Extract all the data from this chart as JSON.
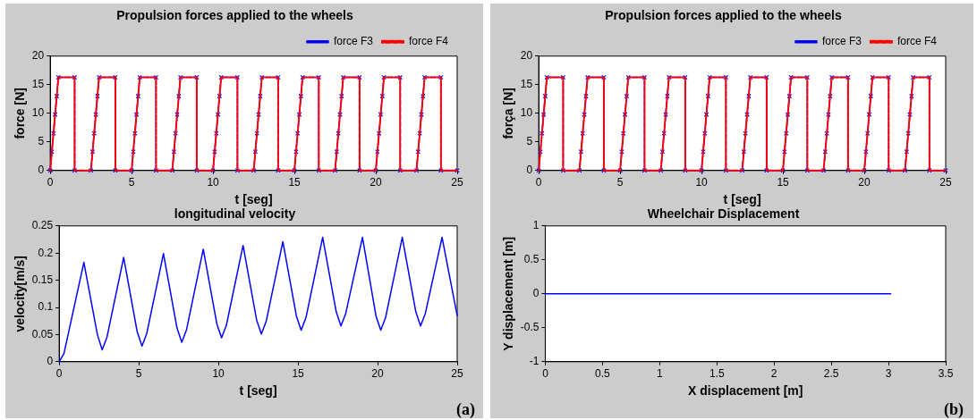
{
  "chart_data": [
    {
      "type": "line",
      "title": "Propulsion forces applied to the wheels",
      "xlabel": "t [seg]",
      "ylabel": "force [N]",
      "x": [
        0,
        0.1,
        0.2,
        0.3,
        0.4,
        0.5,
        1.5,
        1.5,
        2.5,
        2.6,
        2.7,
        2.8,
        2.9,
        3,
        4,
        4,
        5,
        5.1,
        5.2,
        5.3,
        5.4,
        5.5,
        6.5,
        6.5,
        7.5,
        7.6,
        7.7,
        7.8,
        7.9,
        8,
        9,
        9,
        10,
        10.1,
        10.2,
        10.3,
        10.4,
        10.5,
        11.5,
        11.5,
        12.5,
        12.6,
        12.7,
        12.8,
        12.9,
        13,
        14,
        14,
        15,
        15.1,
        15.2,
        15.3,
        15.4,
        15.5,
        16.5,
        16.5,
        17.5,
        17.6,
        17.7,
        17.8,
        17.9,
        18,
        19,
        19,
        20,
        20.1,
        20.2,
        20.3,
        20.4,
        20.5,
        21.5,
        21.5,
        22.5,
        22.6,
        22.7,
        22.8,
        22.9,
        23,
        24,
        24,
        25
      ],
      "series": [
        {
          "name": "force F3",
          "color": "#0000ff",
          "marker": "cross",
          "values": [
            0,
            3.3,
            6.5,
            9.8,
            13,
            16.3,
            16.3,
            0,
            0,
            3.3,
            6.5,
            9.8,
            13,
            16.3,
            16.3,
            0,
            0,
            3.3,
            6.5,
            9.8,
            13,
            16.3,
            16.3,
            0,
            0,
            3.3,
            6.5,
            9.8,
            13,
            16.3,
            16.3,
            0,
            0,
            3.3,
            6.5,
            9.8,
            13,
            16.3,
            16.3,
            0,
            0,
            3.3,
            6.5,
            9.8,
            13,
            16.3,
            16.3,
            0,
            0,
            3.3,
            6.5,
            9.8,
            13,
            16.3,
            16.3,
            0,
            0,
            3.3,
            6.5,
            9.8,
            13,
            16.3,
            16.3,
            0,
            0,
            3.3,
            6.5,
            9.8,
            13,
            16.3,
            16.3,
            0,
            0,
            3.3,
            6.5,
            9.8,
            13,
            16.3,
            16.3,
            0,
            0
          ]
        },
        {
          "name": "force F4",
          "color": "#ff0000",
          "line_style": "dashed",
          "values": [
            0,
            3.3,
            6.5,
            9.8,
            13,
            16.3,
            16.3,
            0,
            0,
            3.3,
            6.5,
            9.8,
            13,
            16.3,
            16.3,
            0,
            0,
            3.3,
            6.5,
            9.8,
            13,
            16.3,
            16.3,
            0,
            0,
            3.3,
            6.5,
            9.8,
            13,
            16.3,
            16.3,
            0,
            0,
            3.3,
            6.5,
            9.8,
            13,
            16.3,
            16.3,
            0,
            0,
            3.3,
            6.5,
            9.8,
            13,
            16.3,
            16.3,
            0,
            0,
            3.3,
            6.5,
            9.8,
            13,
            16.3,
            16.3,
            0,
            0,
            3.3,
            6.5,
            9.8,
            13,
            16.3,
            16.3,
            0,
            0,
            3.3,
            6.5,
            9.8,
            13,
            16.3,
            16.3,
            0,
            0,
            3.3,
            6.5,
            9.8,
            13,
            16.3,
            16.3,
            0,
            0
          ]
        }
      ],
      "xlim": [
        0,
        25
      ],
      "xticks": [
        0,
        5,
        10,
        15,
        20,
        25
      ],
      "ylim": [
        0,
        20
      ],
      "yticks": [
        0,
        5,
        10,
        15,
        20
      ],
      "grid": false,
      "legend": "top right"
    },
    {
      "type": "line",
      "title": "longitudinal velocity",
      "xlabel": "t [seg]",
      "ylabel": "velocity[m/s]",
      "x": [
        0,
        0.3,
        1.55,
        2.4,
        2.7,
        3.0,
        4.05,
        4.9,
        5.2,
        5.5,
        6.55,
        7.4,
        7.7,
        8.0,
        9.05,
        9.9,
        10.2,
        10.5,
        11.55,
        12.4,
        12.7,
        13.0,
        14.05,
        14.9,
        15.2,
        15.5,
        16.55,
        17.4,
        17.7,
        18.0,
        19.05,
        19.9,
        20.2,
        20.5,
        21.55,
        22.4,
        22.7,
        23.0,
        24.05,
        25
      ],
      "series": [
        {
          "color": "#0000ff",
          "values": [
            0,
            0.015,
            0.183,
            0.05,
            0.022,
            0.045,
            0.192,
            0.055,
            0.029,
            0.052,
            0.199,
            0.062,
            0.036,
            0.059,
            0.207,
            0.07,
            0.044,
            0.067,
            0.214,
            0.077,
            0.051,
            0.074,
            0.221,
            0.084,
            0.058,
            0.081,
            0.229,
            0.092,
            0.066,
            0.089,
            0.229,
            0.084,
            0.058,
            0.081,
            0.229,
            0.092,
            0.066,
            0.089,
            0.229,
            0.085
          ]
        }
      ],
      "xlim": [
        0,
        25
      ],
      "xticks": [
        0,
        5,
        10,
        15,
        20,
        25
      ],
      "ylim": [
        0,
        0.25
      ],
      "yticks": [
        0,
        0.05,
        0.1,
        0.15,
        0.2,
        0.25
      ],
      "grid": false,
      "annotations": [
        "(a)"
      ]
    },
    {
      "type": "line",
      "title": "Propulsion forces applied to the wheels",
      "xlabel": "t [seg]",
      "ylabel": "força [N]",
      "x": [
        0,
        0.1,
        0.2,
        0.3,
        0.4,
        0.5,
        1.5,
        1.5,
        2.5,
        2.6,
        2.7,
        2.8,
        2.9,
        3,
        4,
        4,
        5,
        5.1,
        5.2,
        5.3,
        5.4,
        5.5,
        6.5,
        6.5,
        7.5,
        7.6,
        7.7,
        7.8,
        7.9,
        8,
        9,
        9,
        10,
        10.1,
        10.2,
        10.3,
        10.4,
        10.5,
        11.5,
        11.5,
        12.5,
        12.6,
        12.7,
        12.8,
        12.9,
        13,
        14,
        14,
        15,
        15.1,
        15.2,
        15.3,
        15.4,
        15.5,
        16.5,
        16.5,
        17.5,
        17.6,
        17.7,
        17.8,
        17.9,
        18,
        19,
        19,
        20,
        20.1,
        20.2,
        20.3,
        20.4,
        20.5,
        21.5,
        21.5,
        22.5,
        22.6,
        22.7,
        22.8,
        22.9,
        23,
        24,
        24,
        25
      ],
      "series": [
        {
          "name": "force F3",
          "color": "#0000ff",
          "marker": "cross",
          "values": [
            0,
            3.3,
            6.5,
            9.8,
            13,
            16.3,
            16.3,
            0,
            0,
            3.3,
            6.5,
            9.8,
            13,
            16.3,
            16.3,
            0,
            0,
            3.3,
            6.5,
            9.8,
            13,
            16.3,
            16.3,
            0,
            0,
            3.3,
            6.5,
            9.8,
            13,
            16.3,
            16.3,
            0,
            0,
            3.3,
            6.5,
            9.8,
            13,
            16.3,
            16.3,
            0,
            0,
            3.3,
            6.5,
            9.8,
            13,
            16.3,
            16.3,
            0,
            0,
            3.3,
            6.5,
            9.8,
            13,
            16.3,
            16.3,
            0,
            0,
            3.3,
            6.5,
            9.8,
            13,
            16.3,
            16.3,
            0,
            0,
            3.3,
            6.5,
            9.8,
            13,
            16.3,
            16.3,
            0,
            0,
            3.3,
            6.5,
            9.8,
            13,
            16.3,
            16.3,
            0,
            0
          ]
        },
        {
          "name": "force F4",
          "color": "#ff0000",
          "line_style": "dashed",
          "values": [
            0,
            3.3,
            6.5,
            9.8,
            13,
            16.3,
            16.3,
            0,
            0,
            3.3,
            6.5,
            9.8,
            13,
            16.3,
            16.3,
            0,
            0,
            3.3,
            6.5,
            9.8,
            13,
            16.3,
            16.3,
            0,
            0,
            3.3,
            6.5,
            9.8,
            13,
            16.3,
            16.3,
            0,
            0,
            3.3,
            6.5,
            9.8,
            13,
            16.3,
            16.3,
            0,
            0,
            3.3,
            6.5,
            9.8,
            13,
            16.3,
            16.3,
            0,
            0,
            3.3,
            6.5,
            9.8,
            13,
            16.3,
            16.3,
            0,
            0,
            3.3,
            6.5,
            9.8,
            13,
            16.3,
            16.3,
            0,
            0,
            3.3,
            6.5,
            9.8,
            13,
            16.3,
            16.3,
            0,
            0,
            3.3,
            6.5,
            9.8,
            13,
            16.3,
            16.3,
            0,
            0
          ]
        }
      ],
      "xlim": [
        0,
        25
      ],
      "xticks": [
        0,
        5,
        10,
        15,
        20,
        25
      ],
      "ylim": [
        0,
        20
      ],
      "yticks": [
        0,
        5,
        10,
        15,
        20
      ],
      "grid": false,
      "legend": "top right"
    },
    {
      "type": "line",
      "title": "Wheelchair Displacement",
      "xlabel": "X displacement [m]",
      "ylabel": "Y displacement [m]",
      "x": [
        0,
        3.02
      ],
      "series": [
        {
          "color": "#0000ff",
          "values": [
            0,
            0
          ]
        }
      ],
      "xlim": [
        0,
        3.5
      ],
      "xticks": [
        0,
        0.5,
        1,
        1.5,
        2,
        2.5,
        3,
        3.5
      ],
      "ylim": [
        -1,
        1
      ],
      "yticks": [
        -1,
        -0.5,
        0,
        0.5,
        1
      ],
      "grid": false,
      "annotations": [
        "(b)"
      ]
    }
  ]
}
